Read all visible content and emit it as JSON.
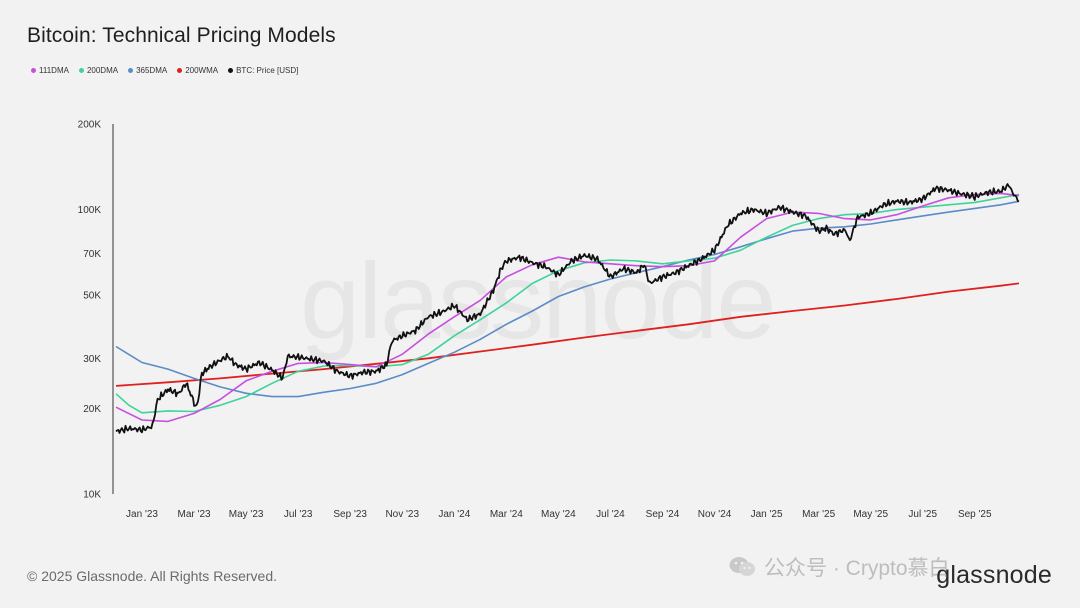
{
  "title": "Bitcoin: Technical Pricing Models",
  "watermark": "glassnode",
  "footer": {
    "copyright": "© 2025 Glassnode. All Rights Reserved.",
    "logo": "glassnode",
    "wechat_label": "公众号 · Crypto慕白"
  },
  "colors": {
    "111DMA": "#c84ee0",
    "200DMA": "#3fd39a",
    "365DMA": "#5b8cc6",
    "200WMA": "#e02020",
    "price": "#111111"
  },
  "chart_data": {
    "type": "line",
    "title": "Bitcoin: Technical Pricing Models",
    "yscale": "log",
    "ylim": [
      10000,
      200000
    ],
    "yticks": [
      {
        "value": 10000,
        "label": "10K"
      },
      {
        "value": 20000,
        "label": "20K"
      },
      {
        "value": 30000,
        "label": "30K"
      },
      {
        "value": 50000,
        "label": "50K"
      },
      {
        "value": 70000,
        "label": "70K"
      },
      {
        "value": 100000,
        "label": "100K"
      },
      {
        "value": 200000,
        "label": "200K"
      }
    ],
    "xlim": [
      0,
      34.7
    ],
    "xticks": [
      {
        "value": 1,
        "label": "Jan '23"
      },
      {
        "value": 3,
        "label": "Mar '23"
      },
      {
        "value": 5,
        "label": "May '23"
      },
      {
        "value": 7,
        "label": "Jul '23"
      },
      {
        "value": 9,
        "label": "Sep '23"
      },
      {
        "value": 11,
        "label": "Nov '23"
      },
      {
        "value": 13,
        "label": "Jan '24"
      },
      {
        "value": 15,
        "label": "Mar '24"
      },
      {
        "value": 17,
        "label": "May '24"
      },
      {
        "value": 19,
        "label": "Jul '24"
      },
      {
        "value": 21,
        "label": "Sep '24"
      },
      {
        "value": 23,
        "label": "Nov '24"
      },
      {
        "value": 25,
        "label": "Jan '25"
      },
      {
        "value": 27,
        "label": "Mar '25"
      },
      {
        "value": 29,
        "label": "May '25"
      },
      {
        "value": 31,
        "label": "Jul '25"
      },
      {
        "value": 33,
        "label": "Sep '25"
      }
    ],
    "series": [
      {
        "key": "111DMA",
        "name": "111DMA",
        "points": [
          [
            0,
            20200
          ],
          [
            1,
            18200
          ],
          [
            2,
            18000
          ],
          [
            3,
            19200
          ],
          [
            4,
            21500
          ],
          [
            5,
            25000
          ],
          [
            6,
            27000
          ],
          [
            7,
            28800
          ],
          [
            8,
            29000
          ],
          [
            9,
            28500
          ],
          [
            10,
            28000
          ],
          [
            11,
            31000
          ],
          [
            12,
            36500
          ],
          [
            13,
            42000
          ],
          [
            14,
            48000
          ],
          [
            15,
            58000
          ],
          [
            16,
            64000
          ],
          [
            17,
            68000
          ],
          [
            18,
            65500
          ],
          [
            19,
            64500
          ],
          [
            20,
            63500
          ],
          [
            21,
            63000
          ],
          [
            22,
            63500
          ],
          [
            23,
            66000
          ],
          [
            24,
            80000
          ],
          [
            25,
            93000
          ],
          [
            26,
            98000
          ],
          [
            27,
            97000
          ],
          [
            28,
            93000
          ],
          [
            29,
            92000
          ],
          [
            30,
            96000
          ],
          [
            31,
            103000
          ],
          [
            32,
            110000
          ],
          [
            33,
            113000
          ],
          [
            34,
            114000
          ],
          [
            34.7,
            112000
          ]
        ]
      },
      {
        "key": "200DMA",
        "name": "200DMA",
        "points": [
          [
            0,
            22500
          ],
          [
            0.5,
            20500
          ],
          [
            1,
            19300
          ],
          [
            2,
            19600
          ],
          [
            3,
            19500
          ],
          [
            4,
            20500
          ],
          [
            5,
            22000
          ],
          [
            6,
            24500
          ],
          [
            7,
            27000
          ],
          [
            8,
            28200
          ],
          [
            9,
            28300
          ],
          [
            10,
            28000
          ],
          [
            11,
            28500
          ],
          [
            12,
            31000
          ],
          [
            13,
            36000
          ],
          [
            14,
            41000
          ],
          [
            15,
            47000
          ],
          [
            16,
            55000
          ],
          [
            17,
            61000
          ],
          [
            18,
            65000
          ],
          [
            19,
            66500
          ],
          [
            20,
            66000
          ],
          [
            21,
            64500
          ],
          [
            22,
            66000
          ],
          [
            23,
            67500
          ],
          [
            24,
            72000
          ],
          [
            25,
            80000
          ],
          [
            26,
            88000
          ],
          [
            27,
            93000
          ],
          [
            28,
            96000
          ],
          [
            29,
            97000
          ],
          [
            30,
            100000
          ],
          [
            31,
            102000
          ],
          [
            32,
            104000
          ],
          [
            33,
            106000
          ],
          [
            34,
            110000
          ],
          [
            34.7,
            113000
          ]
        ]
      },
      {
        "key": "365DMA",
        "name": "365DMA",
        "points": [
          [
            0,
            33000
          ],
          [
            1,
            29000
          ],
          [
            2,
            27500
          ],
          [
            3,
            25500
          ],
          [
            4,
            23800
          ],
          [
            5,
            22600
          ],
          [
            6,
            22000
          ],
          [
            7,
            22000
          ],
          [
            8,
            22800
          ],
          [
            9,
            23500
          ],
          [
            10,
            24500
          ],
          [
            11,
            26300
          ],
          [
            12,
            28800
          ],
          [
            13,
            31500
          ],
          [
            14,
            35000
          ],
          [
            15,
            39500
          ],
          [
            16,
            44000
          ],
          [
            17,
            49500
          ],
          [
            18,
            53500
          ],
          [
            19,
            57000
          ],
          [
            20,
            60000
          ],
          [
            21,
            63000
          ],
          [
            22,
            66500
          ],
          [
            23,
            69500
          ],
          [
            24,
            74000
          ],
          [
            25,
            79000
          ],
          [
            26,
            84000
          ],
          [
            27,
            86000
          ],
          [
            28,
            87000
          ],
          [
            29,
            89000
          ],
          [
            30,
            92000
          ],
          [
            31,
            95000
          ],
          [
            32,
            98000
          ],
          [
            33,
            101000
          ],
          [
            34,
            104000
          ],
          [
            34.7,
            107000
          ]
        ]
      },
      {
        "key": "200WMA",
        "name": "200WMA",
        "points": [
          [
            0,
            24000
          ],
          [
            2,
            24700
          ],
          [
            4,
            25500
          ],
          [
            6,
            26500
          ],
          [
            8,
            27500
          ],
          [
            10,
            28700
          ],
          [
            12,
            30000
          ],
          [
            14,
            31700
          ],
          [
            16,
            33500
          ],
          [
            18,
            35500
          ],
          [
            20,
            37500
          ],
          [
            22,
            39500
          ],
          [
            24,
            42000
          ],
          [
            26,
            44000
          ],
          [
            28,
            46000
          ],
          [
            30,
            48500
          ],
          [
            32,
            51500
          ],
          [
            34,
            54000
          ],
          [
            34.7,
            55000
          ]
        ]
      },
      {
        "key": "price",
        "name": "BTC: Price [USD]",
        "points": [
          [
            0,
            16600
          ],
          [
            0.5,
            17000
          ],
          [
            1,
            16800
          ],
          [
            1.4,
            17300
          ],
          [
            1.6,
            21500
          ],
          [
            2,
            23300
          ],
          [
            2.4,
            22500
          ],
          [
            2.7,
            24500
          ],
          [
            3,
            21000
          ],
          [
            3.1,
            20000
          ],
          [
            3.3,
            26500
          ],
          [
            3.6,
            28000
          ],
          [
            4,
            29500
          ],
          [
            4.3,
            30500
          ],
          [
            4.6,
            28500
          ],
          [
            5,
            27500
          ],
          [
            5.5,
            29000
          ],
          [
            6,
            27300
          ],
          [
            6.4,
            25500
          ],
          [
            6.6,
            30500
          ],
          [
            7,
            30300
          ],
          [
            7.5,
            29800
          ],
          [
            8,
            29300
          ],
          [
            8.5,
            27000
          ],
          [
            9,
            26000
          ],
          [
            9.5,
            26800
          ],
          [
            10,
            27000
          ],
          [
            10.4,
            28500
          ],
          [
            10.6,
            34500
          ],
          [
            11,
            36000
          ],
          [
            11.5,
            37500
          ],
          [
            12,
            42000
          ],
          [
            12.5,
            43500
          ],
          [
            13,
            46000
          ],
          [
            13.5,
            41000
          ],
          [
            14,
            43000
          ],
          [
            14.5,
            52000
          ],
          [
            14.8,
            62000
          ],
          [
            15,
            66000
          ],
          [
            15.5,
            68000
          ],
          [
            16,
            65000
          ],
          [
            16.5,
            63000
          ],
          [
            17,
            59000
          ],
          [
            17.5,
            66000
          ],
          [
            18,
            69000
          ],
          [
            18.5,
            67000
          ],
          [
            19,
            58000
          ],
          [
            19.5,
            62000
          ],
          [
            20,
            60000
          ],
          [
            20.3,
            64000
          ],
          [
            20.5,
            55000
          ],
          [
            21,
            58000
          ],
          [
            21.5,
            60000
          ],
          [
            22,
            63500
          ],
          [
            22.5,
            67000
          ],
          [
            23,
            72000
          ],
          [
            23.5,
            88000
          ],
          [
            24,
            97000
          ],
          [
            24.5,
            100000
          ],
          [
            25,
            97000
          ],
          [
            25.5,
            102000
          ],
          [
            26,
            98000
          ],
          [
            26.5,
            95000
          ],
          [
            27,
            84000
          ],
          [
            27.3,
            86000
          ],
          [
            27.6,
            82000
          ],
          [
            28,
            85000
          ],
          [
            28.2,
            78000
          ],
          [
            28.5,
            94000
          ],
          [
            29,
            97000
          ],
          [
            29.5,
            104000
          ],
          [
            30,
            107000
          ],
          [
            30.5,
            106000
          ],
          [
            31,
            109000
          ],
          [
            31.5,
            119000
          ],
          [
            32,
            117000
          ],
          [
            32.4,
            114000
          ],
          [
            32.8,
            112000
          ],
          [
            33,
            111000
          ],
          [
            33.5,
            115000
          ],
          [
            34,
            116000
          ],
          [
            34.3,
            122000
          ],
          [
            34.5,
            113000
          ],
          [
            34.7,
            107000
          ]
        ]
      }
    ]
  }
}
